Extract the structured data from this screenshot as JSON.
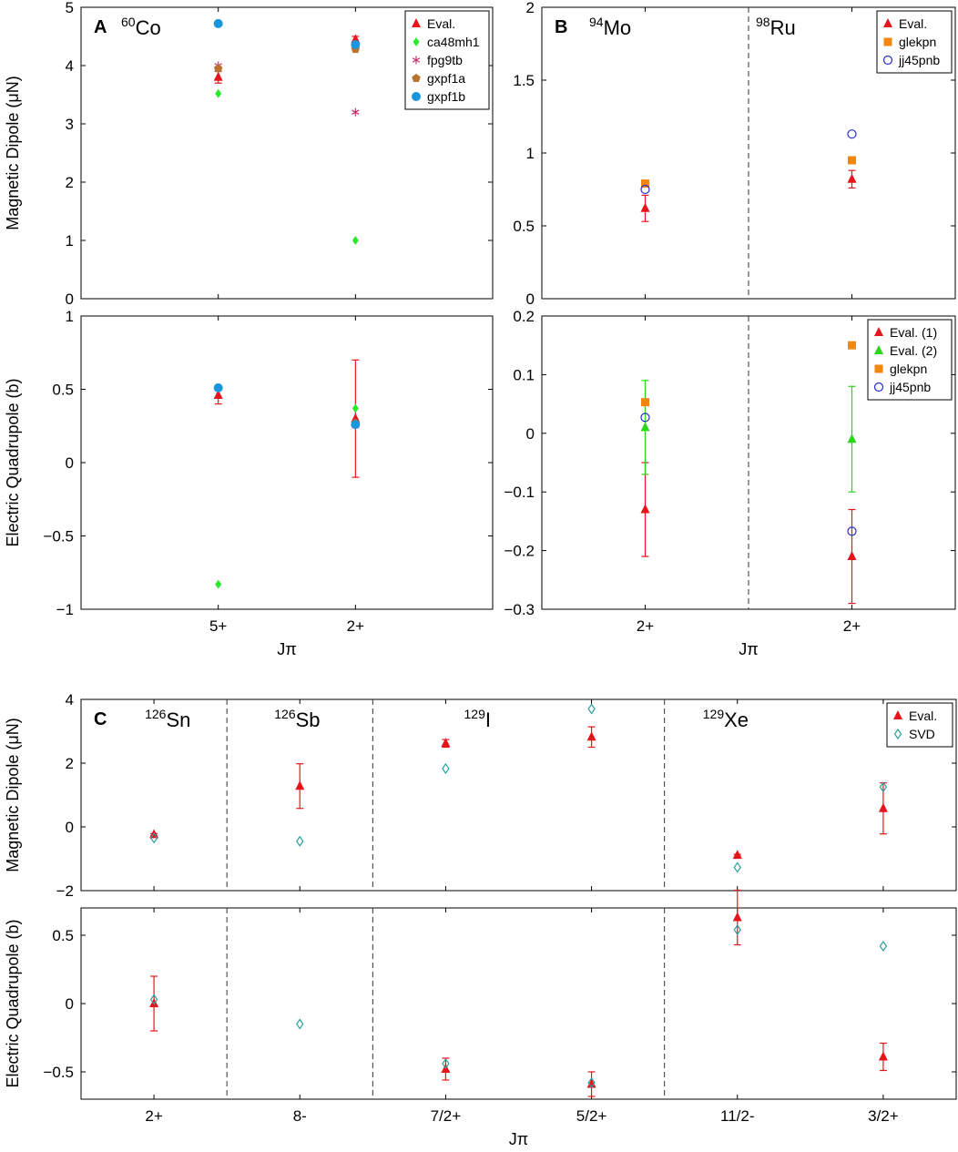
{
  "figure": {
    "colors": {
      "Eval.": "#e8141c",
      "Eval. (1)": "#e8141c",
      "Eval. (2)": "#2ad619",
      "ca48mh1": "#2bea2b",
      "fpg9tb": "#c2306e",
      "gxpf1a": "#b87333",
      "gxpf1b": "#1a96dc",
      "glekpn": "#f4860f",
      "jj45pnb": "#2a2ac8",
      "SVD": "#2aa0a0"
    },
    "markers": {
      "Eval.": "triangle",
      "Eval. (1)": "triangle",
      "Eval. (2)": "triangle",
      "ca48mh1": "diamond",
      "fpg9tb": "star",
      "gxpf1a": "pentagon",
      "gxpf1b": "circle",
      "glekpn": "square",
      "jj45pnb": "open-circle",
      "SVD": "open-diamond"
    }
  },
  "chart_data": [
    {
      "id": "A-top",
      "panel_label": "A",
      "type": "scatter",
      "nucleus": {
        "mass": "60",
        "symbol": "Co"
      },
      "ylabel": "Magnetic Dipole (μN)",
      "ylim": [
        0,
        5
      ],
      "yticks": [
        0,
        1,
        2,
        3,
        4,
        5
      ],
      "categories": [
        "5+",
        "2+"
      ],
      "xlim": [
        -1,
        2
      ],
      "legend_position": "top-right",
      "series": [
        {
          "name": "Eval.",
          "points": [
            {
              "x": 0,
              "y": 3.8,
              "err": 0.1
            },
            {
              "x": 1,
              "y": 4.45,
              "err": 0.05
            }
          ]
        },
        {
          "name": "ca48mh1",
          "points": [
            {
              "x": 0,
              "y": 3.52
            },
            {
              "x": 1,
              "y": 1.0
            }
          ]
        },
        {
          "name": "fpg9tb",
          "points": [
            {
              "x": 0,
              "y": 4.0
            },
            {
              "x": 1,
              "y": 3.2
            }
          ]
        },
        {
          "name": "gxpf1a",
          "points": [
            {
              "x": 0,
              "y": 3.95
            },
            {
              "x": 1,
              "y": 4.28
            }
          ]
        },
        {
          "name": "gxpf1b",
          "points": [
            {
              "x": 0,
              "y": 4.72
            },
            {
              "x": 1,
              "y": 4.36
            }
          ]
        }
      ]
    },
    {
      "id": "A-bottom",
      "type": "scatter",
      "ylabel": "Electric Quadrupole (b)",
      "xlabel": "Jπ",
      "ylim": [
        -1,
        1
      ],
      "yticks": [
        -1,
        -0.5,
        0,
        0.5,
        1
      ],
      "yticklabels": [
        "−1",
        "−0.5",
        "0",
        "0.5",
        "1"
      ],
      "categories": [
        "5+",
        "2+"
      ],
      "xlim": [
        -1,
        2
      ],
      "series": [
        {
          "name": "Eval.",
          "points": [
            {
              "x": 0,
              "y": 0.46,
              "err": 0.06
            },
            {
              "x": 1,
              "y": 0.3,
              "err": 0.4
            }
          ]
        },
        {
          "name": "ca48mh1",
          "points": [
            {
              "x": 0,
              "y": -0.83
            },
            {
              "x": 1,
              "y": 0.37
            }
          ]
        },
        {
          "name": "gxpf1a",
          "points": [
            {
              "x": 1,
              "y": 0.27
            }
          ]
        },
        {
          "name": "fpg9tb",
          "points": [
            {
              "x": 1,
              "y": 0.25
            }
          ]
        },
        {
          "name": "gxpf1b",
          "points": [
            {
              "x": 0,
              "y": 0.51
            },
            {
              "x": 1,
              "y": 0.26
            }
          ]
        }
      ]
    },
    {
      "id": "B-top",
      "panel_label": "B",
      "type": "scatter",
      "nuclei": [
        {
          "mass": "94",
          "symbol": "Mo"
        },
        {
          "mass": "98",
          "symbol": "Ru"
        }
      ],
      "ylabel": "",
      "ylim": [
        0,
        2
      ],
      "yticks": [
        0,
        0.5,
        1,
        1.5,
        2
      ],
      "categories": [
        "2+",
        "2+"
      ],
      "xlim": [
        -0.5,
        1.5
      ],
      "separators": [
        0.5
      ],
      "legend_position": "top-right",
      "series": [
        {
          "name": "Eval.",
          "points": [
            {
              "x": 0,
              "y": 0.62,
              "err": 0.09
            },
            {
              "x": 1,
              "y": 0.82,
              "err": 0.06
            }
          ]
        },
        {
          "name": "glekpn",
          "points": [
            {
              "x": 0,
              "y": 0.79
            },
            {
              "x": 1,
              "y": 0.95
            }
          ]
        },
        {
          "name": "jj45pnb",
          "points": [
            {
              "x": 0,
              "y": 0.75
            },
            {
              "x": 1,
              "y": 1.13
            }
          ]
        }
      ]
    },
    {
      "id": "B-bottom",
      "type": "scatter",
      "xlabel": "Jπ",
      "ylim": [
        -0.3,
        0.2
      ],
      "yticks": [
        -0.3,
        -0.2,
        -0.1,
        0,
        0.1,
        0.2
      ],
      "yticklabels": [
        "−0.3",
        "−0.2",
        "−0.1",
        "0",
        "0.1",
        "0.2"
      ],
      "categories": [
        "2+",
        "2+"
      ],
      "xlim": [
        -0.5,
        1.5
      ],
      "separators": [
        0.5
      ],
      "legend_position": "top-right",
      "series": [
        {
          "name": "Eval. (1)",
          "points": [
            {
              "x": 0,
              "y": -0.13,
              "err": 0.08
            },
            {
              "x": 1,
              "y": -0.21,
              "err": 0.08
            }
          ]
        },
        {
          "name": "Eval. (2)",
          "points": [
            {
              "x": 0,
              "y": 0.01,
              "err": 0.08
            },
            {
              "x": 1,
              "y": -0.01,
              "err": 0.09
            }
          ]
        },
        {
          "name": "glekpn",
          "points": [
            {
              "x": 0,
              "y": 0.053
            },
            {
              "x": 1,
              "y": 0.15
            }
          ]
        },
        {
          "name": "jj45pnb",
          "points": [
            {
              "x": 0,
              "y": 0.027
            },
            {
              "x": 1,
              "y": -0.167
            }
          ]
        }
      ]
    },
    {
      "id": "C-top",
      "panel_label": "C",
      "type": "scatter",
      "nuclei": [
        {
          "mass": "126",
          "symbol": "Sn"
        },
        {
          "mass": "126",
          "symbol": "Sb"
        },
        {
          "mass": "129",
          "symbol": "I"
        },
        {
          "mass": "129",
          "symbol": "Xe"
        }
      ],
      "ylabel": "Magnetic Dipole (μN)",
      "ylim": [
        -2,
        4
      ],
      "yticks": [
        -2,
        0,
        2,
        4
      ],
      "yticklabels": [
        "−2",
        "0",
        "2",
        "4"
      ],
      "categories": [
        "2+",
        "8-",
        "7/2+",
        "5/2+",
        "11/2-",
        "3/2+"
      ],
      "xlim": [
        -0.5,
        5.5
      ],
      "separators": [
        0.5,
        1.5,
        3.5
      ],
      "legend_position": "top-right",
      "series": [
        {
          "name": "Eval.",
          "points": [
            {
              "x": 0,
              "y": -0.24,
              "err": 0.03
            },
            {
              "x": 1,
              "y": 1.28,
              "err": 0.7
            },
            {
              "x": 2,
              "y": 2.62,
              "err": 0.12
            },
            {
              "x": 3,
              "y": 2.82,
              "err": 0.32
            },
            {
              "x": 4,
              "y": -0.89,
              "err": 0.03
            },
            {
              "x": 5,
              "y": 0.58,
              "err": 0.8
            }
          ]
        },
        {
          "name": "SVD",
          "points": [
            {
              "x": 0,
              "y": -0.35
            },
            {
              "x": 1,
              "y": -0.45
            },
            {
              "x": 2,
              "y": 1.83
            },
            {
              "x": 3,
              "y": 3.7
            },
            {
              "x": 4,
              "y": -1.27
            },
            {
              "x": 5,
              "y": 1.25
            }
          ]
        }
      ]
    },
    {
      "id": "C-bottom",
      "type": "scatter",
      "ylabel": "Electric Quadrupole (b)",
      "xlabel": "Jπ",
      "ylim": [
        -0.7,
        0.7
      ],
      "yticks": [
        -0.5,
        0,
        0.5
      ],
      "yticklabels": [
        "−0.5",
        "0",
        "0.5"
      ],
      "categories": [
        "2+",
        "8-",
        "7/2+",
        "5/2+",
        "11/2-",
        "3/2+"
      ],
      "xlim": [
        -0.5,
        5.5
      ],
      "separators": [
        0.5,
        1.5,
        3.5
      ],
      "series": [
        {
          "name": "Eval.",
          "points": [
            {
              "x": 0,
              "y": 0.0,
              "err": 0.2
            },
            {
              "x": 2,
              "y": -0.48,
              "err": 0.08
            },
            {
              "x": 3,
              "y": -0.59,
              "err": 0.09
            },
            {
              "x": 4,
              "y": 0.63,
              "err": 0.2
            },
            {
              "x": 5,
              "y": -0.39,
              "err": 0.1
            }
          ]
        },
        {
          "name": "SVD",
          "points": [
            {
              "x": 0,
              "y": 0.03
            },
            {
              "x": 1,
              "y": -0.15
            },
            {
              "x": 2,
              "y": -0.44
            },
            {
              "x": 3,
              "y": -0.58
            },
            {
              "x": 4,
              "y": 0.54
            },
            {
              "x": 5,
              "y": 0.42
            }
          ]
        }
      ]
    }
  ]
}
